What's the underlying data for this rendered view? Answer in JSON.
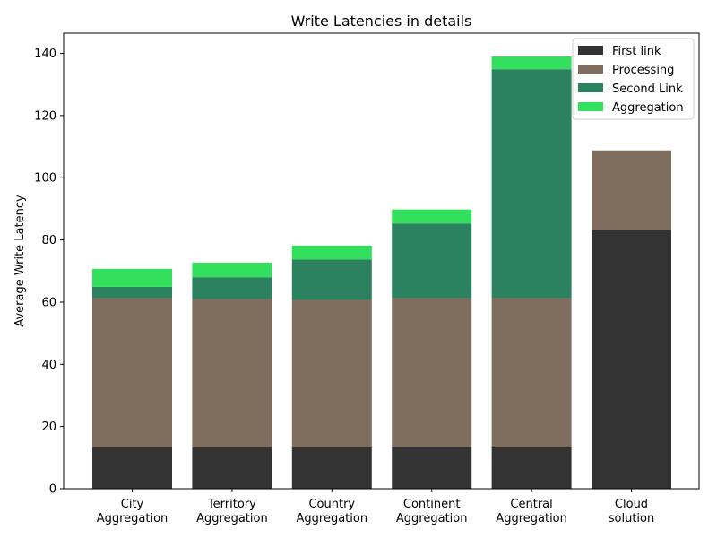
{
  "chart_data": {
    "type": "bar",
    "stacked": true,
    "title": "Write Latencies in details",
    "xlabel": "",
    "ylabel": "Average Write Latency",
    "ylim": [
      0,
      146.5
    ],
    "yticks": [
      0,
      20,
      40,
      60,
      80,
      100,
      120,
      140
    ],
    "categories": [
      [
        "City",
        "Aggregation"
      ],
      [
        "Territory",
        "Aggregation"
      ],
      [
        "Country",
        "Aggregation"
      ],
      [
        "Continent",
        "Aggregation"
      ],
      [
        "Central",
        "Aggregation"
      ],
      [
        "Cloud",
        "solution"
      ]
    ],
    "series": [
      {
        "name": "First link",
        "color": "#333333",
        "values": [
          13.3,
          13.3,
          13.3,
          13.5,
          13.3,
          83.3
        ]
      },
      {
        "name": "Processing",
        "color": "#7f6e5e",
        "values": [
          48.0,
          47.7,
          47.4,
          47.8,
          48.0,
          25.5
        ]
      },
      {
        "name": "Second Link",
        "color": "#2c8160",
        "values": [
          3.6,
          7.0,
          13.0,
          24.0,
          73.6,
          0
        ]
      },
      {
        "name": "Aggregation",
        "color": "#33e05d",
        "values": [
          5.8,
          4.7,
          4.5,
          4.5,
          4.1,
          0
        ]
      }
    ],
    "legend_position": "top-right",
    "grid": false
  }
}
